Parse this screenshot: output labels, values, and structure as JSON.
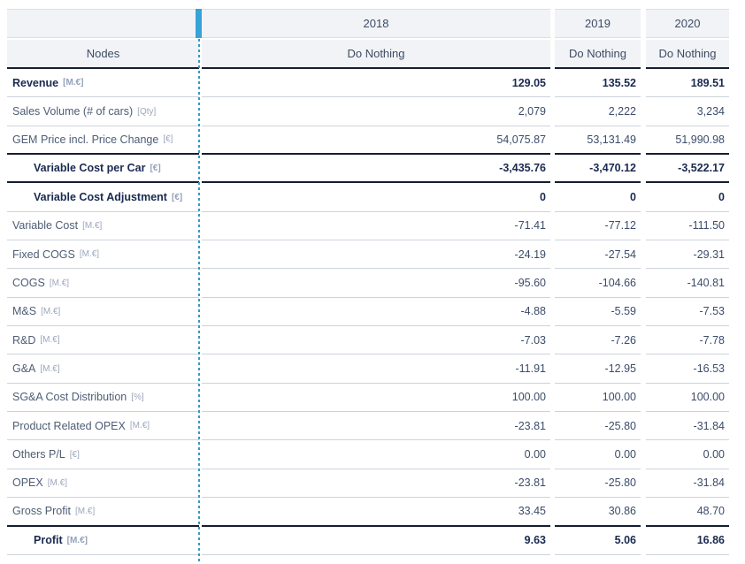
{
  "table": {
    "corner_label": "Nodes",
    "columns": [
      {
        "year": "2018",
        "scenario": "Do Nothing"
      },
      {
        "year": "2019",
        "scenario": "Do Nothing"
      },
      {
        "year": "2020",
        "scenario": "Do Nothing"
      }
    ],
    "rows": [
      {
        "label": "Revenue",
        "unit": "[M.€]",
        "bold": true,
        "indent": false,
        "divider": "light",
        "values": [
          "129.05",
          "135.52",
          "189.51"
        ]
      },
      {
        "label": "Sales Volume (# of cars)",
        "unit": "[Qty]",
        "bold": false,
        "indent": false,
        "divider": "light",
        "values": [
          "2,079",
          "2,222",
          "3,234"
        ]
      },
      {
        "label": "GEM Price incl. Price Change",
        "unit": "[€]",
        "bold": false,
        "indent": false,
        "divider": "dark",
        "values": [
          "54,075.87",
          "53,131.49",
          "51,990.98"
        ]
      },
      {
        "label": "Variable Cost per Car",
        "unit": "[€]",
        "bold": true,
        "indent": true,
        "divider": "dark",
        "values": [
          "-3,435.76",
          "-3,470.12",
          "-3,522.17"
        ]
      },
      {
        "label": "Variable Cost Adjustment",
        "unit": "[€]",
        "bold": true,
        "indent": true,
        "divider": "light",
        "values": [
          "0",
          "0",
          "0"
        ]
      },
      {
        "label": "Variable Cost",
        "unit": "[M.€]",
        "bold": false,
        "indent": false,
        "divider": "light",
        "values": [
          "-71.41",
          "-77.12",
          "-111.50"
        ]
      },
      {
        "label": "Fixed COGS",
        "unit": "[M.€]",
        "bold": false,
        "indent": false,
        "divider": "light",
        "values": [
          "-24.19",
          "-27.54",
          "-29.31"
        ]
      },
      {
        "label": "COGS",
        "unit": "[M.€]",
        "bold": false,
        "indent": false,
        "divider": "light",
        "values": [
          "-95.60",
          "-104.66",
          "-140.81"
        ]
      },
      {
        "label": "M&S",
        "unit": "[M.€]",
        "bold": false,
        "indent": false,
        "divider": "light",
        "values": [
          "-4.88",
          "-5.59",
          "-7.53"
        ]
      },
      {
        "label": "R&D",
        "unit": "[M.€]",
        "bold": false,
        "indent": false,
        "divider": "light",
        "values": [
          "-7.03",
          "-7.26",
          "-7.78"
        ]
      },
      {
        "label": "G&A",
        "unit": "[M.€]",
        "bold": false,
        "indent": false,
        "divider": "light",
        "values": [
          "-11.91",
          "-12.95",
          "-16.53"
        ]
      },
      {
        "label": "SG&A Cost Distribution",
        "unit": "[%]",
        "bold": false,
        "indent": false,
        "divider": "light",
        "values": [
          "100.00",
          "100.00",
          "100.00"
        ]
      },
      {
        "label": "Product Related OPEX",
        "unit": "[M.€]",
        "bold": false,
        "indent": false,
        "divider": "light",
        "values": [
          "-23.81",
          "-25.80",
          "-31.84"
        ]
      },
      {
        "label": "Others P/L",
        "unit": "[€]",
        "bold": false,
        "indent": false,
        "divider": "light",
        "values": [
          "0.00",
          "0.00",
          "0.00"
        ]
      },
      {
        "label": "OPEX",
        "unit": "[M.€]",
        "bold": false,
        "indent": false,
        "divider": "light",
        "values": [
          "-23.81",
          "-25.80",
          "-31.84"
        ]
      },
      {
        "label": "Gross Profit",
        "unit": "[M.€]",
        "bold": false,
        "indent": false,
        "divider": "dark",
        "values": [
          "33.45",
          "30.86",
          "48.70"
        ]
      },
      {
        "label": "Profit",
        "unit": "[M.€]",
        "bold": true,
        "indent": true,
        "divider": "light",
        "values": [
          "9.63",
          "5.06",
          "16.86"
        ]
      }
    ]
  },
  "colors": {
    "accent_bar": "#36a3d9",
    "dashed_divider": "#2f9cc0",
    "header_background": "#f1f3f6",
    "dark_border": "#141e30",
    "light_border": "#cdd3dc",
    "bold_text": "#1a2a50",
    "label_text": "#4e5d74",
    "value_text": "#3c4c6a",
    "unit_text": "#9ca7bc"
  }
}
